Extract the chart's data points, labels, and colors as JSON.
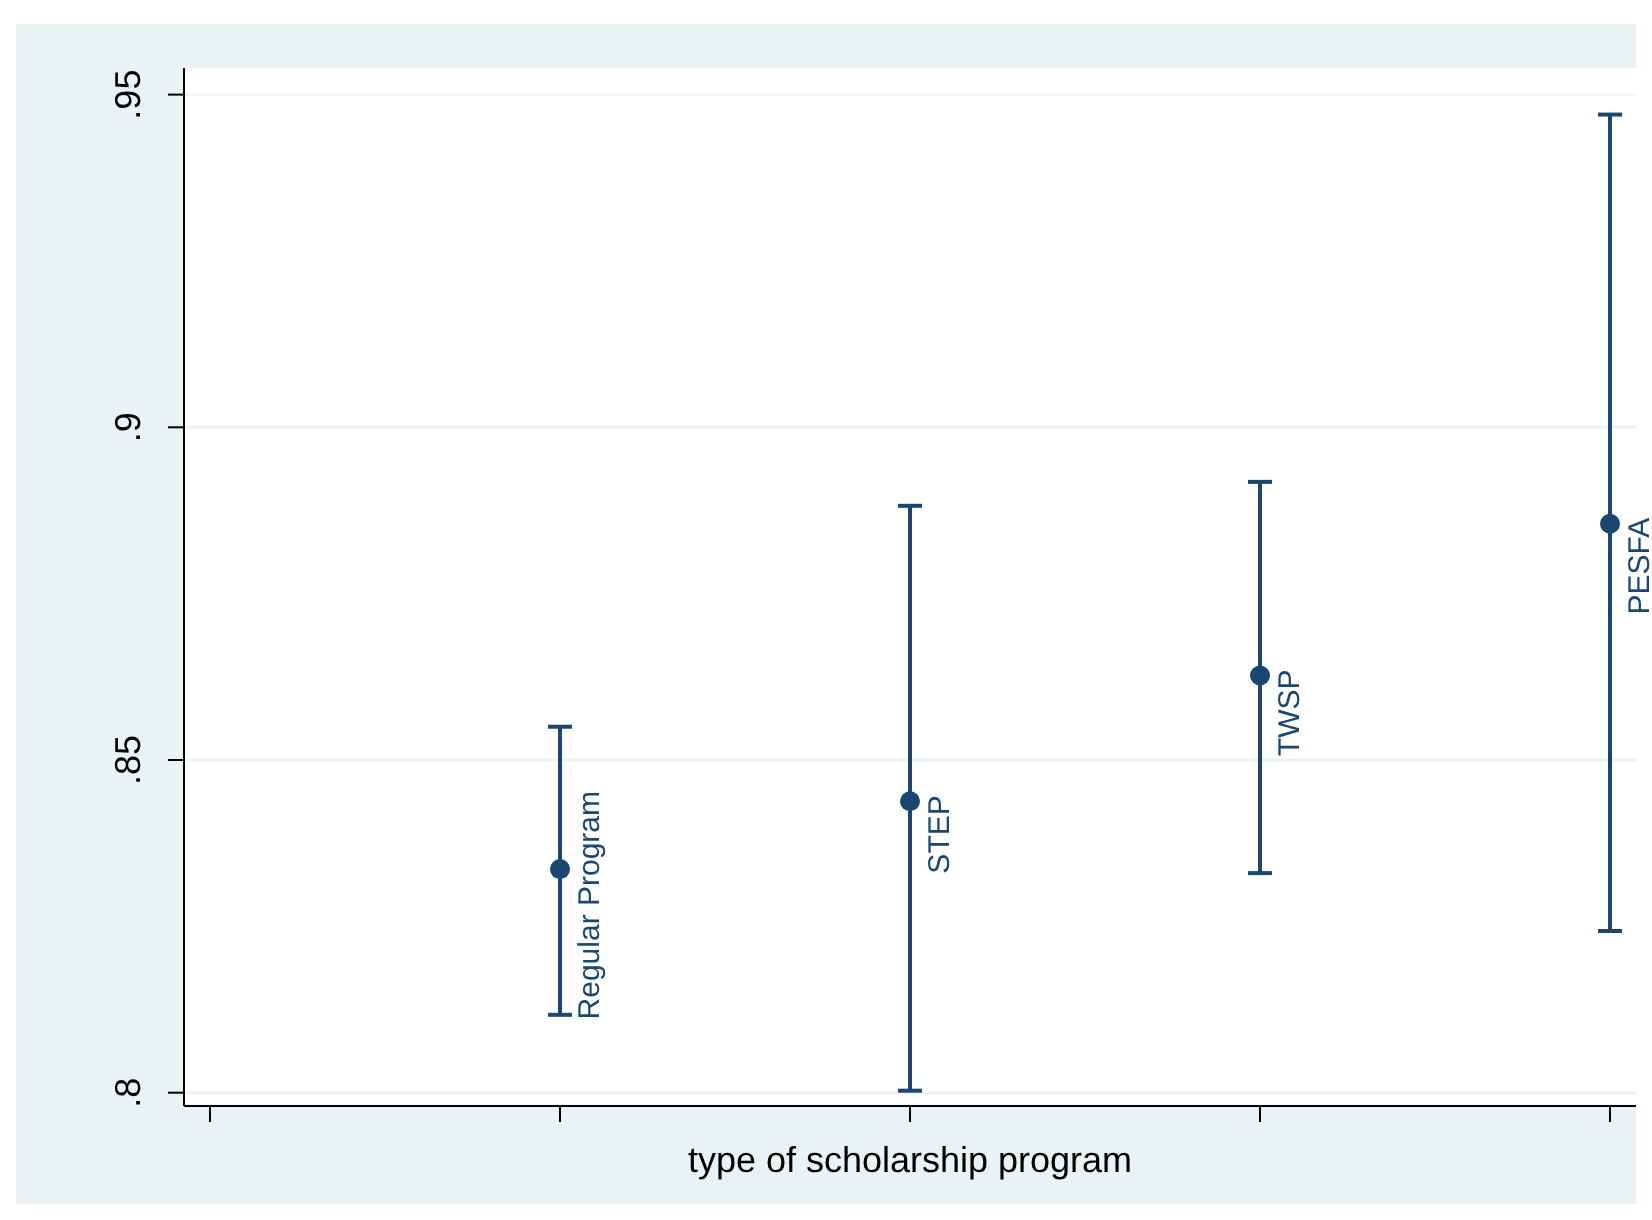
{
  "chart_data": {
    "type": "scatter",
    "xlabel": "type of scholarship program",
    "categories": [
      null,
      null,
      null,
      null,
      null
    ],
    "values": [
      null,
      0.8336,
      0.8438,
      0.8627,
      0.8855
    ],
    "errors": [
      null,
      [
        0.8117,
        0.855
      ],
      [
        0.8003,
        0.8882
      ],
      [
        0.833,
        0.8918
      ],
      [
        0.8243,
        0.947
      ]
    ],
    "color": "#1a476f",
    "marker": "circle",
    "ylim": [
      0.798,
      0.954
    ],
    "yticks": [
      {
        "value": 0.8,
        "label": ".8"
      },
      {
        "value": 0.85,
        "label": ".85"
      },
      {
        "value": 0.9,
        "label": ".9"
      },
      {
        "value": 0.95,
        "label": ".95"
      }
    ],
    "grid": "y",
    "tick_labels": "y",
    "annotations": [
      null,
      "Regular Program",
      "STEP",
      "TWSP",
      "PESFA"
    ]
  }
}
